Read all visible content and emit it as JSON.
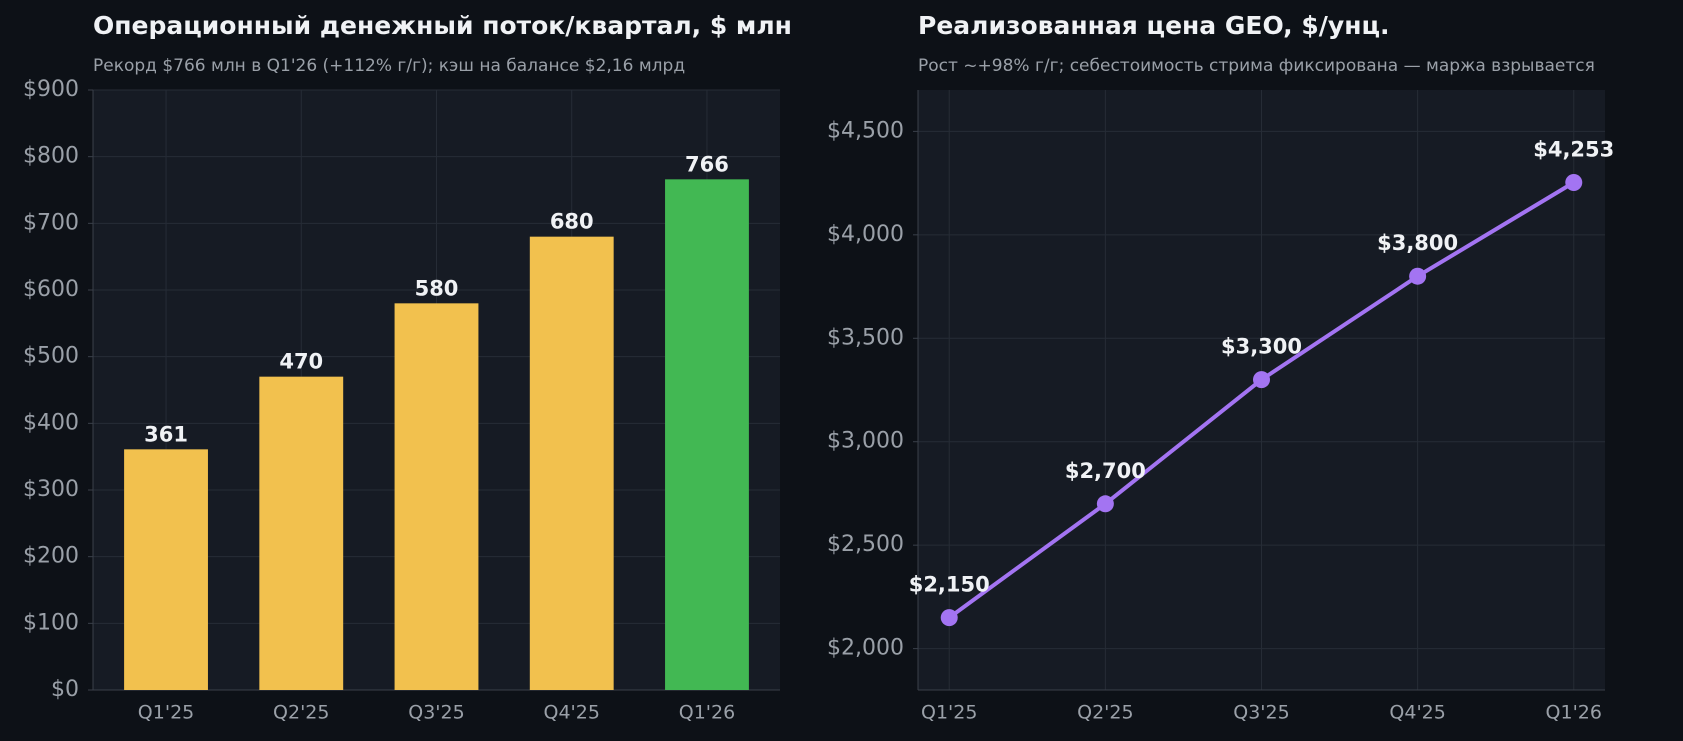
{
  "chart_data": [
    {
      "type": "bar",
      "title": "Операционный денежный поток/квартал, $ млн",
      "subtitle": "Рекорд $766 млн в Q1'26 (+112% г/г); кэш на балансе $2,16 млрд",
      "categories": [
        "Q1'25",
        "Q2'25",
        "Q3'25",
        "Q4'25",
        "Q1'26"
      ],
      "values": [
        361,
        470,
        580,
        680,
        766
      ],
      "colors": [
        "#f2c14e",
        "#f2c14e",
        "#f2c14e",
        "#f2c14e",
        "#42b853"
      ],
      "ylim": [
        0,
        900
      ],
      "yticks": [
        {
          "value": 0,
          "label": "$0"
        },
        {
          "value": 100,
          "label": "$100"
        },
        {
          "value": 200,
          "label": "$200"
        },
        {
          "value": 300,
          "label": "$300"
        },
        {
          "value": 400,
          "label": "$400"
        },
        {
          "value": 500,
          "label": "$500"
        },
        {
          "value": 600,
          "label": "$600"
        },
        {
          "value": 700,
          "label": "$700"
        },
        {
          "value": 800,
          "label": "$800"
        },
        {
          "value": 900,
          "label": "$900"
        }
      ],
      "grid": true
    },
    {
      "type": "line",
      "title": "Реализованная цена GEO, $/унц.",
      "subtitle": "Рост ~+98% г/г; себестоимость стрима фиксирована — маржа взрывается",
      "categories": [
        "Q1'25",
        "Q2'25",
        "Q3'25",
        "Q4'25",
        "Q1'26"
      ],
      "values": [
        2150,
        2700,
        3300,
        3800,
        4253
      ],
      "value_labels": [
        "$2,150",
        "$2,700",
        "$3,300",
        "$3,800",
        "$4,253"
      ],
      "color": "#a374f2",
      "ylim": [
        1800,
        4700
      ],
      "yticks": [
        {
          "value": 2000,
          "label": "$2,000"
        },
        {
          "value": 2500,
          "label": "$2,500"
        },
        {
          "value": 3000,
          "label": "$3,000"
        },
        {
          "value": 3500,
          "label": "$3,500"
        },
        {
          "value": 4000,
          "label": "$4,000"
        },
        {
          "value": 4500,
          "label": "$4,500"
        }
      ],
      "grid": true
    }
  ]
}
